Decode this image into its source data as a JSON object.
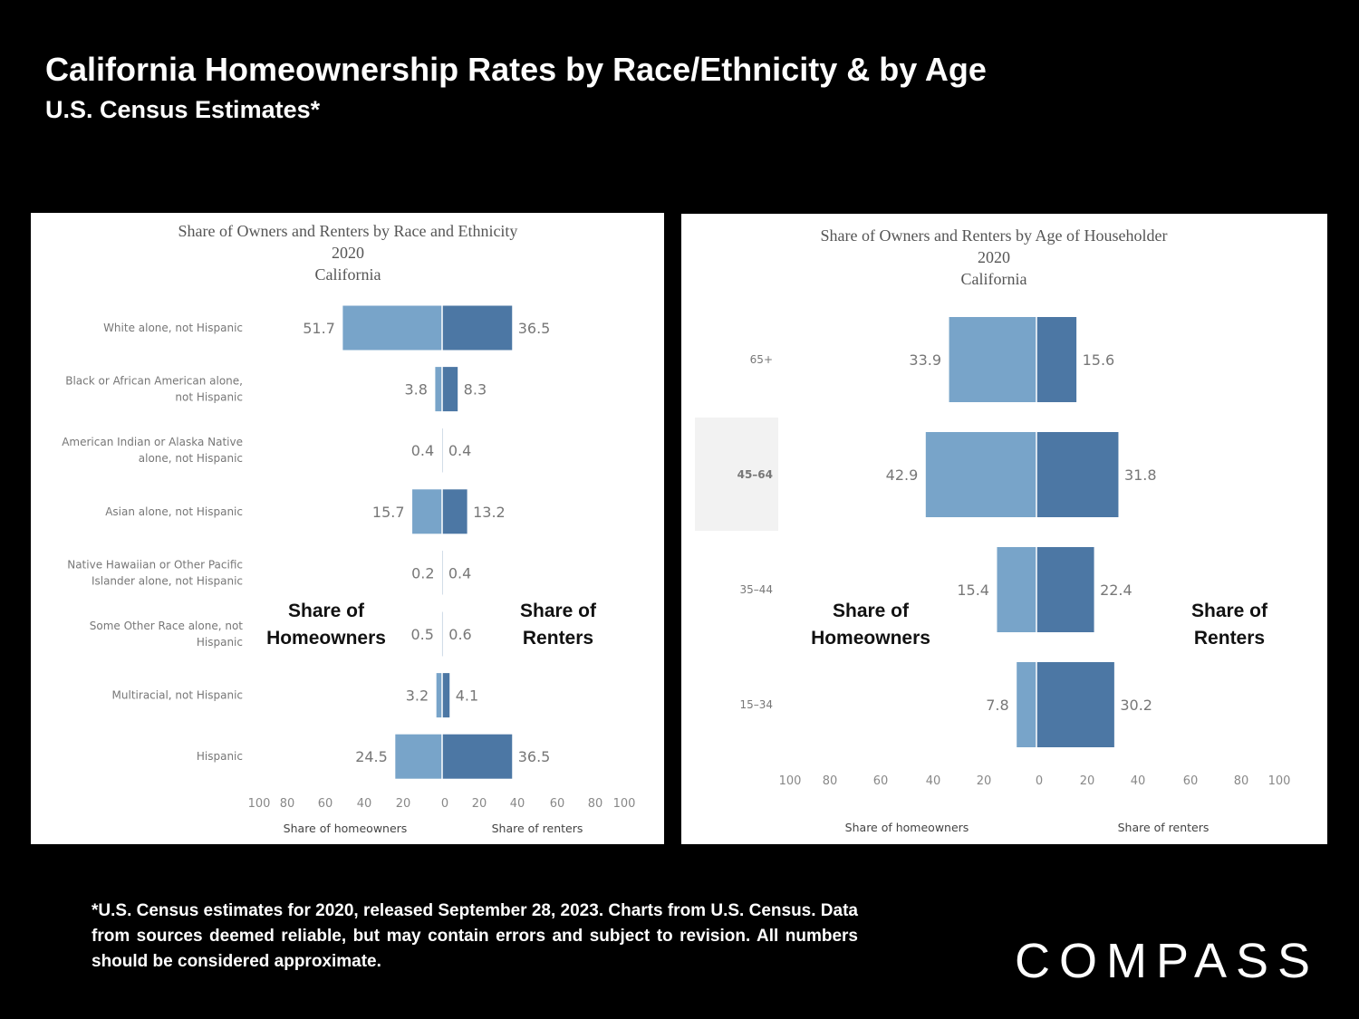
{
  "page": {
    "title": "California Homeownership Rates by Race/Ethnicity & by Age",
    "subtitle": "U.S. Census Estimates*",
    "footnote": "*U.S. Census estimates for 2020, released September 28, 2023. Charts from U.S. Census. Data from sources deemed reliable, but may contain errors and subject to revision. All numbers should be considered approximate.",
    "logo": "COMPASS"
  },
  "colors": {
    "owners": "#78a4c9",
    "renters": "#4c77a4",
    "highlight": "#f2f2f2"
  },
  "chart_data": [
    {
      "type": "bar",
      "orientation": "horizontal-diverging",
      "title": "Share of Owners and Renters by Race and Ethnicity",
      "title_year": "2020",
      "title_place": "California",
      "categories": [
        "White alone, not Hispanic",
        "Black or African American alone, not Hispanic",
        "American Indian or Alaska Native alone, not Hispanic",
        "Asian alone, not Hispanic",
        "Native Hawaiian or Other Pacific Islander alone, not Hispanic",
        "Some Other Race alone, not Hispanic",
        "Multiracial, not Hispanic",
        "Hispanic"
      ],
      "category_lines": [
        [
          "White alone, not Hispanic"
        ],
        [
          "Black or African American alone,",
          "not Hispanic"
        ],
        [
          "American Indian or Alaska Native",
          "alone, not Hispanic"
        ],
        [
          "Asian alone, not Hispanic"
        ],
        [
          "Native Hawaiian or Other Pacific",
          "Islander alone, not Hispanic"
        ],
        [
          "Some Other Race alone, not",
          "Hispanic"
        ],
        [
          "Multiracial, not Hispanic"
        ],
        [
          "Hispanic"
        ]
      ],
      "series": [
        {
          "name": "Share of homeowners",
          "values": [
            51.7,
            3.8,
            0.4,
            15.7,
            0.2,
            0.5,
            3.2,
            24.5
          ]
        },
        {
          "name": "Share of renters",
          "values": [
            36.5,
            8.3,
            0.4,
            13.2,
            0.4,
            0.6,
            4.1,
            36.5
          ]
        }
      ],
      "value_labels": {
        "owners": [
          "51.7",
          "3.8",
          "0.4",
          "15.7",
          "0.2",
          "0.5",
          "3.2",
          "24.5"
        ],
        "renters": [
          "36.5",
          "8.3",
          "0.4",
          "13.2",
          "0.4",
          "0.6",
          "4.1",
          "36.5"
        ]
      },
      "xlim": [
        -100,
        100
      ],
      "tick_labels": [
        "100",
        "80",
        "60",
        "40",
        "20",
        "0",
        "20",
        "40",
        "60",
        "80",
        "100"
      ],
      "xlabel_left": "Share of homeowners",
      "xlabel_right": "Share of renters",
      "overlay_left": [
        "Share of",
        "Homeowners"
      ],
      "overlay_right": [
        "Share of",
        "Renters"
      ]
    },
    {
      "type": "bar",
      "orientation": "horizontal-diverging",
      "title": "Share of Owners and Renters by Age of Householder",
      "title_year": "2020",
      "title_place": "California",
      "categories": [
        "65+",
        "45–64",
        "35–44",
        "15–34"
      ],
      "category_lines": [
        [
          "65+"
        ],
        [
          "45–64"
        ],
        [
          "35–44"
        ],
        [
          "15–34"
        ]
      ],
      "highlighted_category": "45–64",
      "series": [
        {
          "name": "Share of homeowners",
          "values": [
            33.9,
            42.9,
            15.4,
            7.8
          ]
        },
        {
          "name": "Share of renters",
          "values": [
            15.6,
            31.8,
            22.4,
            30.2
          ]
        }
      ],
      "value_labels": {
        "owners": [
          "33.9",
          "42.9",
          "15.4",
          "7.8"
        ],
        "renters": [
          "15.6",
          "31.8",
          "22.4",
          "30.2"
        ]
      },
      "xlim": [
        -100,
        100
      ],
      "tick_labels": [
        "100",
        "80",
        "60",
        "40",
        "20",
        "0",
        "20",
        "40",
        "60",
        "80",
        "100"
      ],
      "xlabel_left": "Share of homeowners",
      "xlabel_right": "Share of renters",
      "overlay_left": [
        "Share of",
        "Homeowners"
      ],
      "overlay_right": [
        "Share of",
        "Renters"
      ]
    }
  ]
}
